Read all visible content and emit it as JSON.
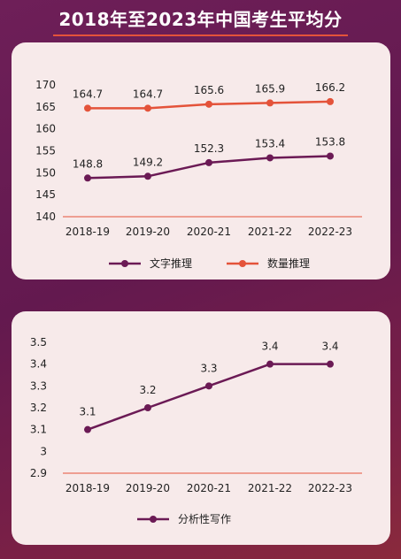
{
  "title": "2018年至2023年中国考生平均分",
  "colors": {
    "purple": "#6b1a55",
    "orange": "#e4533a"
  },
  "chart_data": [
    {
      "type": "line",
      "categories": [
        "2018-19",
        "2019-20",
        "2020-21",
        "2021-22",
        "2022-23"
      ],
      "series": [
        {
          "name": "文字推理",
          "color": "#6b1a55",
          "values": [
            148.8,
            149.2,
            152.3,
            153.4,
            153.8
          ]
        },
        {
          "name": "数量推理",
          "color": "#e4533a",
          "values": [
            164.7,
            164.7,
            165.6,
            165.9,
            166.2
          ]
        }
      ],
      "yticks": [
        140,
        145,
        150,
        155,
        160,
        165,
        170
      ],
      "ytick_labels": [
        "140",
        "145",
        "150",
        "155",
        "160",
        "165",
        "170"
      ],
      "ylim": [
        140,
        170
      ],
      "legend": "bottom",
      "grid": false
    },
    {
      "type": "line",
      "categories": [
        "2018-19",
        "2019-20",
        "2020-21",
        "2021-22",
        "2022-23"
      ],
      "series": [
        {
          "name": "分析性写作",
          "color": "#6b1a55",
          "values": [
            3.1,
            3.2,
            3.3,
            3.4,
            3.4
          ]
        }
      ],
      "yticks": [
        2.9,
        3.0,
        3.1,
        3.2,
        3.3,
        3.4,
        3.5
      ],
      "ytick_labels": [
        "2.9",
        "3",
        "3.1",
        "3.2",
        "3.3",
        "3.4",
        "3.5"
      ],
      "ylim": [
        2.9,
        3.5
      ],
      "legend": "bottom",
      "grid": false
    }
  ]
}
